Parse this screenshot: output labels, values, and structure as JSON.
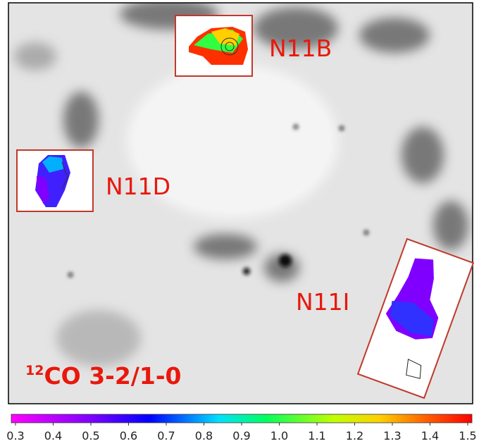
{
  "labels": [
    "N11B",
    "N11D",
    "N11I"
  ],
  "title": {
    "superscript": "12",
    "text": "CO 3-2/1-0"
  },
  "colorbar": {
    "lim": [
      0.3,
      1.5
    ],
    "ticks": [
      0.3,
      0.4,
      0.5,
      0.6,
      0.7,
      0.8,
      0.9,
      {
        "value": 1,
        "label": "1.0"
      },
      1.1,
      1.2,
      1.3,
      1.4,
      1.5
    ]
  }
}
